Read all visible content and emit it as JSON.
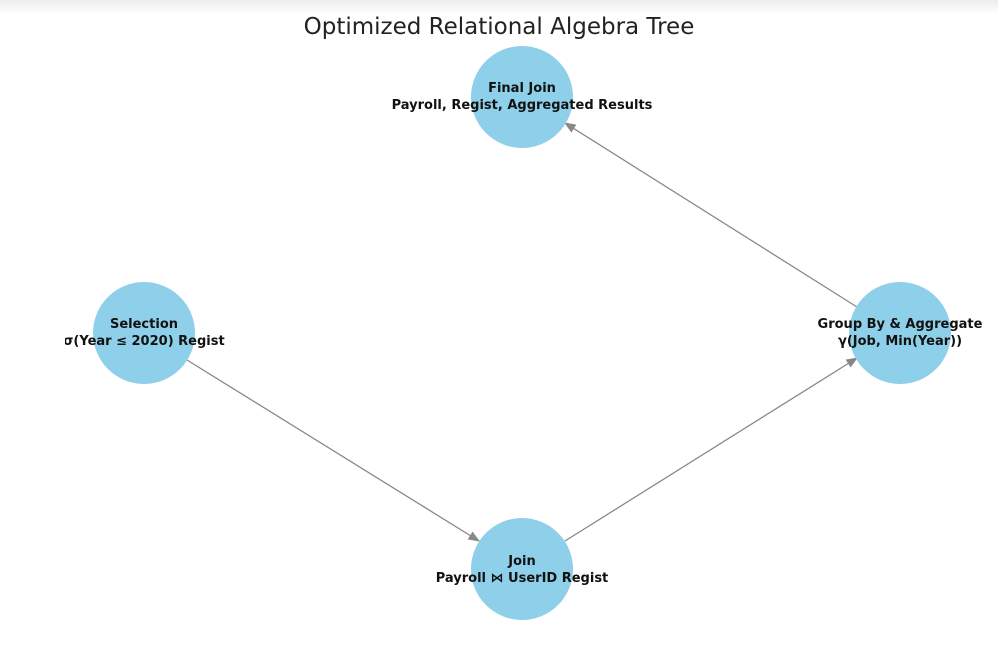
{
  "title": "Optimized Relational Algebra Tree",
  "colors": {
    "node_fill": "#8ecfea",
    "edge": "#888888",
    "text": "#111111"
  },
  "nodes": {
    "final_join": {
      "line1": "Final Join",
      "line2": "Payroll, Regist, Aggregated Results"
    },
    "selection": {
      "line1": "Selection",
      "line2": "σ(Year ≤ 2020) Regist"
    },
    "join": {
      "line1": "Join",
      "line2": "Payroll ⋈ UserID Regist"
    },
    "group_by": {
      "line1": "Group By & Aggregate",
      "line2": "γ(Job, Min(Year))"
    }
  },
  "edges": [
    {
      "from": "selection",
      "to": "join"
    },
    {
      "from": "join",
      "to": "group_by"
    },
    {
      "from": "group_by",
      "to": "final_join"
    }
  ]
}
